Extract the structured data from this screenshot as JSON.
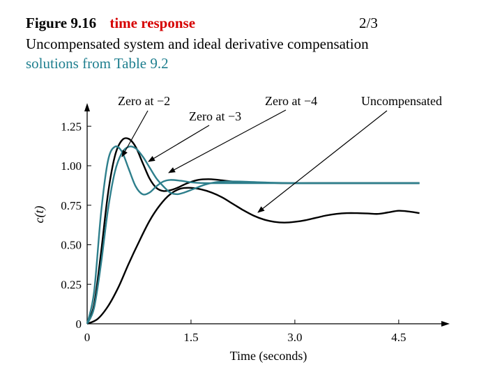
{
  "header": {
    "figure_label": "Figure 9.16",
    "topic": "time response",
    "page": "2/3",
    "subtitle": "Uncompensated system and ideal derivative compensation",
    "source_note": "solutions from Table 9.2"
  },
  "colors": {
    "black_series": "#000000",
    "teal_series": "#2e7f8c",
    "topic": "#d60000",
    "source_note": "#1f7f8f"
  },
  "chart_data": {
    "type": "line",
    "xlabel": "Time (seconds)",
    "ylabel": "c(t)",
    "xlim": [
      0,
      5.2
    ],
    "ylim": [
      0,
      1.4
    ],
    "x_ticks": [
      0,
      1.5,
      3.0,
      4.5
    ],
    "x_tick_labels": [
      "0",
      "1.5",
      "3.0",
      "4.5"
    ],
    "y_ticks": [
      0,
      0.25,
      0.5,
      0.75,
      1.0,
      1.25
    ],
    "y_tick_labels": [
      "0",
      "0.25",
      "0.50",
      "0.75",
      "1.00",
      "1.25"
    ],
    "grid": false,
    "series": [
      {
        "name": "Uncompensated",
        "color": "#000000",
        "x": [
          0,
          0.15,
          0.3,
          0.45,
          0.6,
          0.75,
          0.9,
          1.05,
          1.2,
          1.35,
          1.5,
          1.65,
          1.8,
          1.95,
          2.1,
          2.25,
          2.4,
          2.55,
          2.7,
          2.85,
          3.0,
          3.15,
          3.3,
          3.45,
          3.6,
          3.75,
          3.9,
          4.05,
          4.2,
          4.35,
          4.5,
          4.65,
          4.8
        ],
        "y": [
          0,
          0.03,
          0.11,
          0.23,
          0.38,
          0.52,
          0.65,
          0.75,
          0.82,
          0.855,
          0.86,
          0.85,
          0.83,
          0.8,
          0.76,
          0.72,
          0.685,
          0.66,
          0.645,
          0.64,
          0.645,
          0.655,
          0.67,
          0.685,
          0.695,
          0.7,
          0.7,
          0.698,
          0.695,
          0.705,
          0.715,
          0.71,
          0.7
        ]
      },
      {
        "name": "Zero at −2",
        "color": "#000000",
        "x": [
          0,
          0.1,
          0.2,
          0.3,
          0.4,
          0.5,
          0.6,
          0.7,
          0.8,
          0.9,
          1.0,
          1.1,
          1.2,
          1.3,
          1.45,
          1.6,
          1.75,
          1.9,
          2.1,
          2.4,
          2.8,
          3.2,
          3.6,
          4.0,
          4.4,
          4.8
        ],
        "y": [
          0,
          0.12,
          0.45,
          0.82,
          1.06,
          1.16,
          1.17,
          1.12,
          1.02,
          0.92,
          0.86,
          0.84,
          0.845,
          0.86,
          0.89,
          0.91,
          0.915,
          0.91,
          0.9,
          0.895,
          0.89,
          0.89,
          0.89,
          0.89,
          0.89,
          0.89
        ]
      },
      {
        "name": "Zero at −3",
        "color": "#2e7f8c",
        "x": [
          0,
          0.1,
          0.2,
          0.3,
          0.4,
          0.5,
          0.6,
          0.7,
          0.8,
          0.9,
          1.0,
          1.1,
          1.2,
          1.3,
          1.4,
          1.55,
          1.7,
          1.85,
          2.0,
          2.2,
          2.5,
          3.0,
          3.5,
          4.0,
          4.5,
          4.8
        ],
        "y": [
          0,
          0.1,
          0.38,
          0.72,
          0.96,
          1.08,
          1.12,
          1.11,
          1.06,
          0.99,
          0.92,
          0.87,
          0.83,
          0.82,
          0.83,
          0.855,
          0.88,
          0.895,
          0.9,
          0.9,
          0.895,
          0.89,
          0.89,
          0.89,
          0.89,
          0.89
        ]
      },
      {
        "name": "Zero at −4",
        "color": "#2e7f8c",
        "x": [
          0,
          0.1,
          0.2,
          0.3,
          0.4,
          0.5,
          0.6,
          0.7,
          0.8,
          0.9,
          1.0,
          1.1,
          1.2,
          1.35,
          1.5,
          1.7,
          1.9,
          2.2,
          2.6,
          3.0,
          3.5,
          4.0,
          4.5,
          4.8
        ],
        "y": [
          0,
          0.2,
          0.7,
          1.03,
          1.12,
          1.09,
          0.98,
          0.87,
          0.82,
          0.83,
          0.87,
          0.9,
          0.91,
          0.905,
          0.895,
          0.89,
          0.89,
          0.89,
          0.89,
          0.89,
          0.89,
          0.89,
          0.89,
          0.89
        ]
      }
    ],
    "annotations": [
      {
        "text": "Zero at −2",
        "target_series": "Zero at −2"
      },
      {
        "text": "Zero at −3",
        "target_series": "Zero at −3"
      },
      {
        "text": "Zero at −4",
        "target_series": "Zero at −4"
      },
      {
        "text": "Uncompensated",
        "target_series": "Uncompensated"
      }
    ]
  }
}
